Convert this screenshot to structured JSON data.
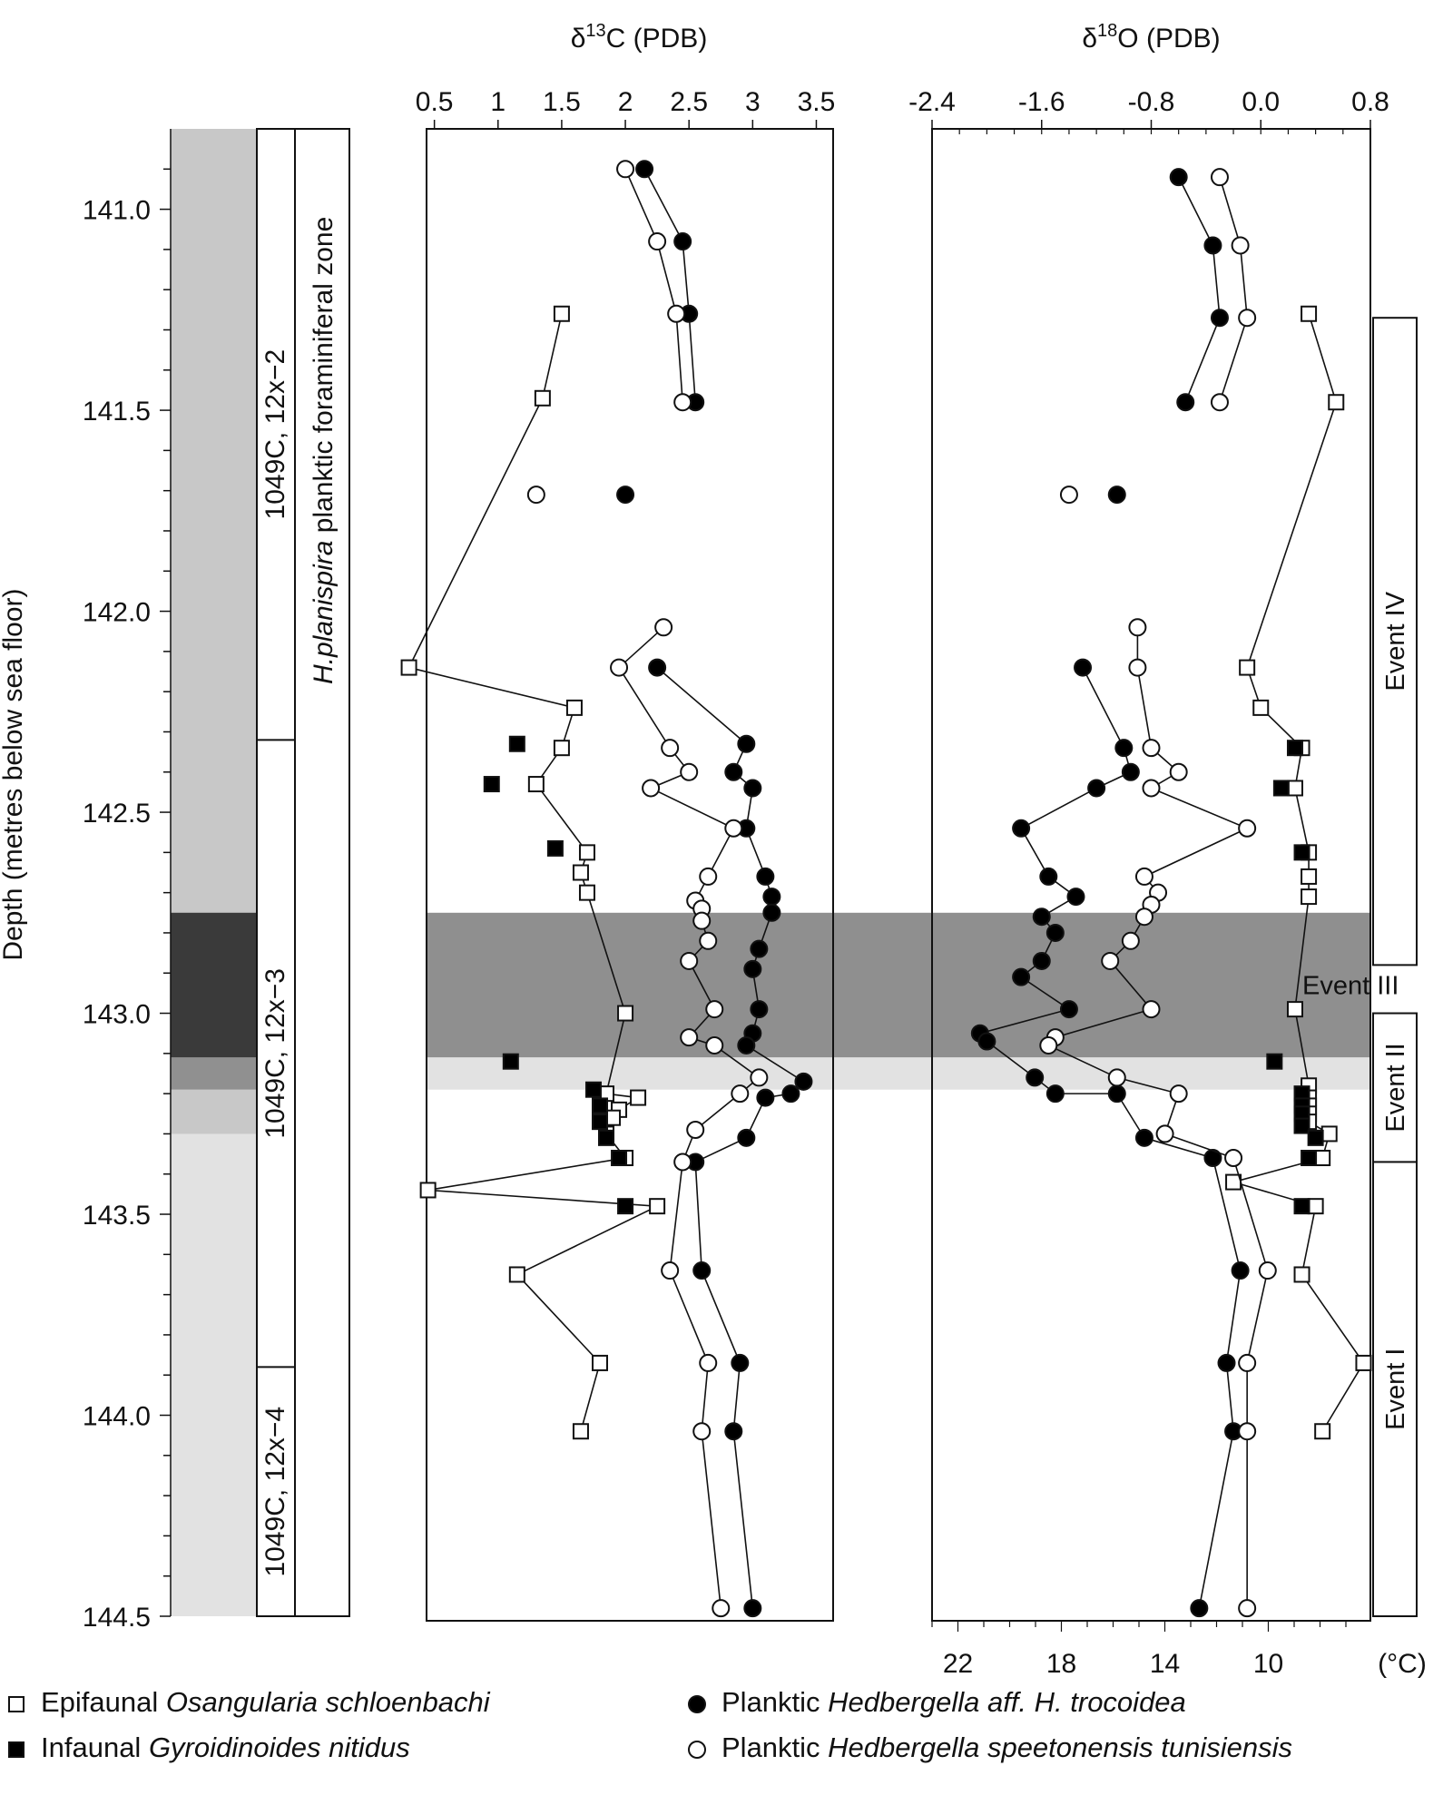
{
  "chart_data": {
    "type": "scatter",
    "y_axis": {
      "label": "Depth (metres below sea floor)",
      "range": [
        140.8,
        144.5
      ],
      "ticks": [
        141.0,
        141.5,
        142.0,
        142.5,
        143.0,
        143.5,
        144.0,
        144.5
      ],
      "tick_labels": [
        "141.0",
        "141.5",
        "142.0",
        "142.5",
        "143.0",
        "143.5",
        "144.0",
        "144.5"
      ],
      "reversed": true
    },
    "panels": [
      {
        "id": "carbon",
        "title_main": "δ",
        "title_sup": "13",
        "title_rest": "C (PDB)",
        "x_range": [
          0.0,
          3.6
        ],
        "x_ticks": [
          0.5,
          1,
          1.5,
          2,
          2.5,
          3,
          3.5
        ],
        "x_tick_labels": [
          "0.5",
          "1",
          "1.5",
          "2",
          "2.5",
          "3",
          "3.5"
        ],
        "series": [
          {
            "key": "epi",
            "marker": "open-square",
            "connected": true,
            "points": [
              [
                1.5,
                141.26
              ],
              [
                1.35,
                141.47
              ],
              [
                0.3,
                142.14
              ],
              [
                1.6,
                142.24
              ],
              [
                1.5,
                142.34
              ],
              [
                1.3,
                142.43
              ],
              [
                1.7,
                142.6
              ],
              [
                1.65,
                142.65
              ],
              [
                1.7,
                142.7
              ],
              [
                2.0,
                143.0
              ],
              [
                1.85,
                143.2
              ],
              [
                2.1,
                143.21
              ],
              [
                1.95,
                143.24
              ],
              [
                1.9,
                143.26
              ],
              [
                1.85,
                143.3
              ],
              [
                2.0,
                143.36
              ],
              [
                0.45,
                143.44
              ],
              [
                2.25,
                143.48
              ],
              [
                1.15,
                143.65
              ],
              [
                1.8,
                143.87
              ],
              [
                1.65,
                144.04
              ]
            ]
          },
          {
            "key": "inf",
            "marker": "filled-square",
            "connected": false,
            "points": [
              [
                1.15,
                142.33
              ],
              [
                0.95,
                142.43
              ],
              [
                1.45,
                142.59
              ],
              [
                1.1,
                143.12
              ],
              [
                1.75,
                143.19
              ],
              [
                1.8,
                143.23
              ],
              [
                1.8,
                143.27
              ],
              [
                1.85,
                143.31
              ],
              [
                1.95,
                143.36
              ],
              [
                2.0,
                143.48
              ]
            ]
          },
          {
            "key": "hed-aff",
            "marker": "filled-circle",
            "connected": true,
            "break_after": 3,
            "points": [
              [
                2.15,
                140.9
              ],
              [
                2.45,
                141.08
              ],
              [
                2.5,
                141.26
              ],
              [
                2.55,
                141.48
              ],
              [
                2.0,
                141.71
              ],
              [
                2.25,
                142.14
              ],
              [
                2.95,
                142.33
              ],
              [
                2.85,
                142.4
              ],
              [
                3.0,
                142.44
              ],
              [
                2.95,
                142.54
              ],
              [
                3.1,
                142.66
              ],
              [
                3.15,
                142.71
              ],
              [
                3.15,
                142.75
              ],
              [
                3.05,
                142.84
              ],
              [
                3.0,
                142.89
              ],
              [
                3.05,
                142.99
              ],
              [
                3.0,
                143.05
              ],
              [
                2.95,
                143.08
              ],
              [
                3.4,
                143.17
              ],
              [
                3.3,
                143.2
              ],
              [
                3.1,
                143.21
              ],
              [
                2.95,
                143.31
              ],
              [
                2.55,
                143.37
              ],
              [
                2.6,
                143.64
              ],
              [
                2.9,
                143.87
              ],
              [
                2.85,
                144.04
              ],
              [
                3.0,
                144.48
              ]
            ]
          },
          {
            "key": "hed-spe",
            "marker": "open-circle",
            "connected": true,
            "break_after": 3,
            "points": [
              [
                2.0,
                140.9
              ],
              [
                2.25,
                141.08
              ],
              [
                2.4,
                141.26
              ],
              [
                2.45,
                141.48
              ],
              [
                1.3,
                141.71
              ],
              [
                2.3,
                142.04
              ],
              [
                1.95,
                142.14
              ],
              [
                2.35,
                142.34
              ],
              [
                2.5,
                142.4
              ],
              [
                2.2,
                142.44
              ],
              [
                2.85,
                142.54
              ],
              [
                2.65,
                142.66
              ],
              [
                2.55,
                142.72
              ],
              [
                2.6,
                142.74
              ],
              [
                2.6,
                142.77
              ],
              [
                2.65,
                142.82
              ],
              [
                2.5,
                142.87
              ],
              [
                2.7,
                142.99
              ],
              [
                2.5,
                143.06
              ],
              [
                2.7,
                143.08
              ],
              [
                3.05,
                143.16
              ],
              [
                2.9,
                143.2
              ],
              [
                2.55,
                143.29
              ],
              [
                2.45,
                143.37
              ],
              [
                2.35,
                143.64
              ],
              [
                2.65,
                143.87
              ],
              [
                2.6,
                144.04
              ],
              [
                2.75,
                144.48
              ]
            ]
          }
        ]
      },
      {
        "id": "oxygen",
        "title_main": "δ",
        "title_sup": "18",
        "title_rest": "O (PDB)",
        "x_range": [
          -2.4,
          0.8
        ],
        "x_ticks": [
          -2.4,
          -1.6,
          -0.8,
          0.0,
          0.8
        ],
        "x_tick_labels": [
          "-2.4",
          "-1.6",
          "-0.8",
          "0.0",
          "0.8"
        ],
        "temp_ticks": [
          22,
          18,
          14,
          10
        ],
        "temp_tick_labels": [
          "22",
          "18",
          "14",
          "10"
        ],
        "temp_unit": "(°C)",
        "series": [
          {
            "key": "epi",
            "marker": "open-square",
            "connected": true,
            "points": [
              [
                0.35,
                141.26
              ],
              [
                0.55,
                141.48
              ],
              [
                -0.1,
                142.14
              ],
              [
                0.0,
                142.24
              ],
              [
                0.3,
                142.34
              ],
              [
                0.25,
                142.44
              ],
              [
                0.35,
                142.6
              ],
              [
                0.35,
                142.66
              ],
              [
                0.35,
                142.71
              ],
              [
                0.25,
                142.99
              ],
              [
                0.35,
                143.18
              ],
              [
                0.35,
                143.21
              ],
              [
                0.35,
                143.23
              ],
              [
                0.35,
                143.25
              ],
              [
                0.35,
                143.27
              ],
              [
                0.5,
                143.3
              ],
              [
                0.45,
                143.36
              ],
              [
                -0.2,
                143.42
              ],
              [
                0.4,
                143.48
              ],
              [
                0.3,
                143.65
              ],
              [
                0.75,
                143.87
              ],
              [
                0.45,
                144.04
              ]
            ]
          },
          {
            "key": "inf",
            "marker": "filled-square",
            "connected": false,
            "points": [
              [
                0.25,
                142.34
              ],
              [
                0.15,
                142.44
              ],
              [
                0.3,
                142.6
              ],
              [
                0.1,
                143.12
              ],
              [
                0.3,
                143.2
              ],
              [
                0.3,
                143.23
              ],
              [
                0.3,
                143.25
              ],
              [
                0.3,
                143.28
              ],
              [
                0.4,
                143.31
              ],
              [
                0.35,
                143.36
              ],
              [
                0.3,
                143.48
              ]
            ]
          },
          {
            "key": "hed-aff",
            "marker": "filled-circle",
            "connected": true,
            "break_after": 3,
            "points": [
              [
                -0.6,
                140.92
              ],
              [
                -0.35,
                141.09
              ],
              [
                -0.3,
                141.27
              ],
              [
                -0.55,
                141.48
              ],
              [
                -1.05,
                141.71
              ],
              [
                -1.3,
                142.14
              ],
              [
                -1.0,
                142.34
              ],
              [
                -0.95,
                142.4
              ],
              [
                -1.2,
                142.44
              ],
              [
                -1.75,
                142.54
              ],
              [
                -1.55,
                142.66
              ],
              [
                -1.35,
                142.71
              ],
              [
                -1.6,
                142.76
              ],
              [
                -1.5,
                142.8
              ],
              [
                -1.6,
                142.87
              ],
              [
                -1.75,
                142.91
              ],
              [
                -1.4,
                142.99
              ],
              [
                -2.05,
                143.05
              ],
              [
                -2.0,
                143.07
              ],
              [
                -1.65,
                143.16
              ],
              [
                -1.5,
                143.2
              ],
              [
                -1.05,
                143.2
              ],
              [
                -0.85,
                143.31
              ],
              [
                -0.35,
                143.36
              ],
              [
                -0.15,
                143.64
              ],
              [
                -0.25,
                143.87
              ],
              [
                -0.2,
                144.04
              ],
              [
                -0.45,
                144.48
              ]
            ]
          },
          {
            "key": "hed-spe",
            "marker": "open-circle",
            "connected": true,
            "break_after": 3,
            "points": [
              [
                -0.3,
                140.92
              ],
              [
                -0.15,
                141.09
              ],
              [
                -0.1,
                141.27
              ],
              [
                -0.3,
                141.48
              ],
              [
                -1.4,
                141.71
              ],
              [
                -0.9,
                142.04
              ],
              [
                -0.9,
                142.14
              ],
              [
                -0.8,
                142.34
              ],
              [
                -0.6,
                142.4
              ],
              [
                -0.8,
                142.44
              ],
              [
                -0.1,
                142.54
              ],
              [
                -0.85,
                142.66
              ],
              [
                -0.75,
                142.7
              ],
              [
                -0.8,
                142.73
              ],
              [
                -0.85,
                142.76
              ],
              [
                -0.95,
                142.82
              ],
              [
                -1.1,
                142.87
              ],
              [
                -0.8,
                142.99
              ],
              [
                -1.5,
                143.06
              ],
              [
                -1.55,
                143.08
              ],
              [
                -1.05,
                143.16
              ],
              [
                -0.6,
                143.2
              ],
              [
                -0.7,
                143.3
              ],
              [
                -0.2,
                143.36
              ],
              [
                0.05,
                143.64
              ],
              [
                -0.1,
                143.87
              ],
              [
                -0.1,
                144.04
              ],
              [
                -0.1,
                144.48
              ]
            ]
          }
        ]
      }
    ],
    "legend": [
      {
        "key": "epi",
        "marker": "open-square",
        "prefix": "Epifaunal ",
        "italic": "Osangularia schloenbachi",
        "suffix": ""
      },
      {
        "key": "hed-aff",
        "marker": "filled-circle",
        "prefix": "Planktic ",
        "italic": "Hedbergella aff. H. trocoidea",
        "suffix": ""
      },
      {
        "key": "inf",
        "marker": "filled-square",
        "prefix": "Infaunal ",
        "italic": "Gyroidinoides nitidus",
        "suffix": ""
      },
      {
        "key": "hed-spe",
        "marker": "open-circle",
        "prefix": "Planktic ",
        "italic": "Hedbergella speetonensis tunisiensis",
        "suffix": ""
      }
    ],
    "cores": [
      {
        "label": "1049C, 12x−2",
        "from": 140.8,
        "to": 142.32
      },
      {
        "label": "1049C, 12x−3",
        "from": 142.32,
        "to": 143.88
      },
      {
        "label": "1049C, 12x−4",
        "from": 143.88,
        "to": 144.5
      }
    ],
    "zone": {
      "italic": "H.planispira",
      "rest": " planktic foraminiferal zone"
    },
    "bands": [
      {
        "from": 142.75,
        "to": 143.11,
        "color": "#8f8f8f"
      },
      {
        "from": 143.11,
        "to": 143.19,
        "color": "#e2e2e2"
      }
    ],
    "events": [
      {
        "label": "Event IV",
        "from": 141.27,
        "to": 142.88
      },
      {
        "label": "Event III",
        "at": 142.93
      },
      {
        "label": "Event II",
        "from": 143.0,
        "to": 143.37
      },
      {
        "label": "Event I",
        "from": 143.37,
        "to": 144.5
      }
    ],
    "colors": {
      "band_dark": "#8f8f8f",
      "band_light": "#e2e2e2",
      "left_dark": "#3a3a3a",
      "left_mid": "#909090",
      "left_light": "#c8c8c8",
      "left_pale": "#e2e2e2"
    }
  }
}
